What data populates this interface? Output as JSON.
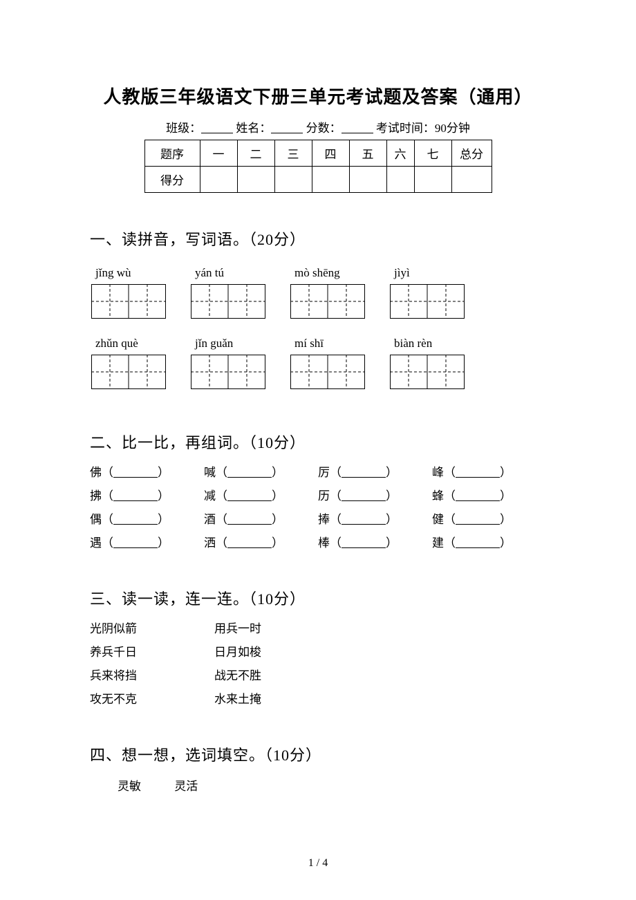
{
  "title": "人教版三年级语文下册三单元考试题及答案（通用）",
  "info": {
    "class_label": "班级：",
    "name_label": "姓名：",
    "score_label": "分数：",
    "time_label": "考试时间：90分钟"
  },
  "score_table": {
    "row1_hdr": "题序",
    "cols": [
      "一",
      "二",
      "三",
      "四",
      "五",
      "六",
      "七"
    ],
    "total": "总分",
    "row2_hdr": "得分"
  },
  "q1": {
    "heading": "一、读拼音，写词语。（20分）",
    "row1": [
      "jǐng wù",
      "yán tú",
      "mò shēng",
      "jìyì"
    ],
    "row2": [
      "zhǔn què",
      "jǐn guǎn",
      "mí shī",
      "biàn rèn"
    ]
  },
  "q2": {
    "heading": "二、比一比，再组词。（10分）",
    "rows": [
      [
        "佛",
        "喊",
        "厉",
        "峰"
      ],
      [
        "拂",
        "减",
        "历",
        "蜂"
      ],
      [
        "偶",
        "酒",
        "捧",
        "健"
      ],
      [
        "遇",
        "洒",
        "棒",
        "建"
      ]
    ]
  },
  "q3": {
    "heading": "三、读一读，连一连。（10分）",
    "pairs": [
      [
        "光阴似箭",
        "用兵一时"
      ],
      [
        "养兵千日",
        "日月如梭"
      ],
      [
        "兵来将挡",
        "战无不胜"
      ],
      [
        "攻无不克",
        "水来土掩"
      ]
    ]
  },
  "q4": {
    "heading": "四、想一想，选词填空。（10分）",
    "words": [
      "灵敏",
      "灵活"
    ]
  },
  "footer": "1 / 4"
}
